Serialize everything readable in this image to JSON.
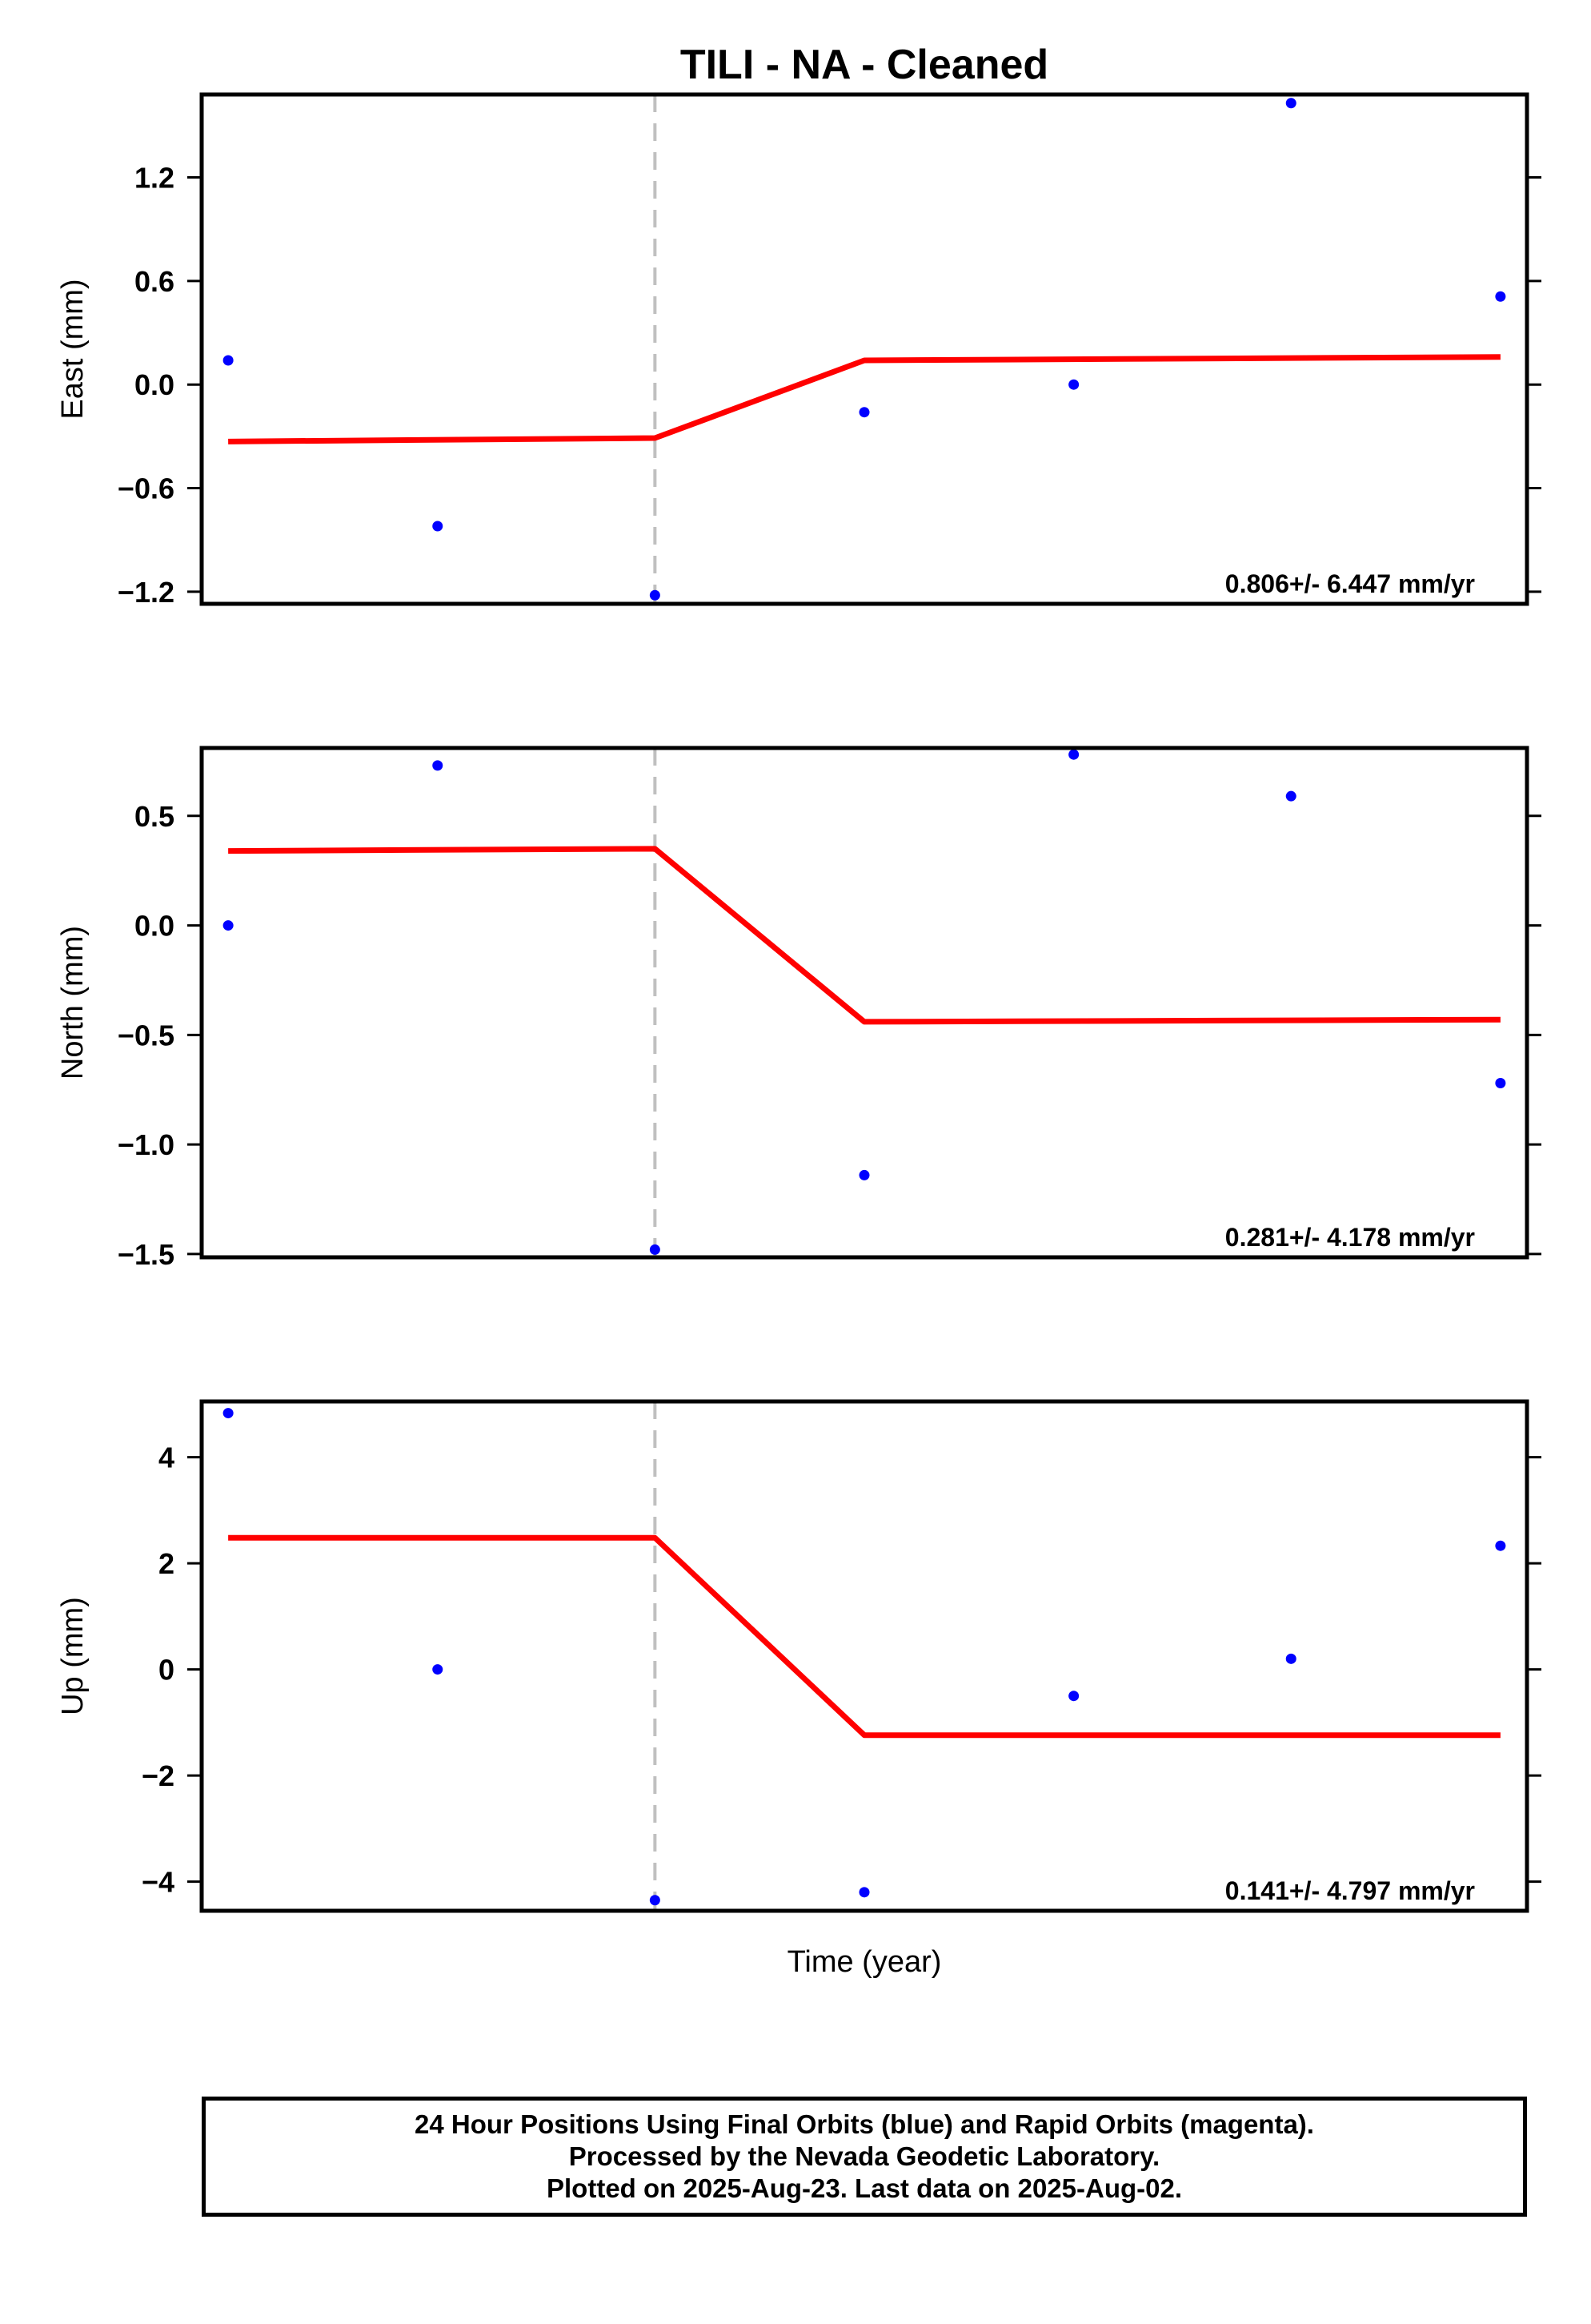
{
  "title": "TILI  - NA - Cleaned",
  "xlabel": "Time (year)",
  "colors": {
    "final_orbits": "#0000ff",
    "model": "#ff0000",
    "epoch_line": "#c0c0c0",
    "frame": "#000000"
  },
  "footer": {
    "line1": "24 Hour Positions Using Final Orbits (blue) and Rapid Orbits (magenta).",
    "line2": "Processed by the Nevada Geodetic Laboratory.",
    "line3": "Plotted on 2025-Aug-23. Last data on 2025-Aug-02."
  },
  "chart_data": [
    {
      "type": "scatter",
      "panel": "east",
      "ylabel": "East (mm)",
      "rate_label": "0.806+/- 6.447 mm/yr",
      "ylim": [
        -1.27,
        1.68
      ],
      "yticks": [
        1.2,
        0.6,
        0.0,
        -0.6,
        -1.2
      ],
      "ytick_labels": [
        "1.2",
        "0.6",
        "0.0",
        "−0.6",
        "−1.2"
      ],
      "xlim": [
        0,
        1
      ],
      "x_epoch": 0.342,
      "points": {
        "x": [
          0.02,
          0.178,
          0.342,
          0.5,
          0.658,
          0.822,
          0.98
        ],
        "y": [
          0.14,
          -0.82,
          -1.22,
          -0.16,
          0.0,
          1.63,
          0.51
        ]
      },
      "model": {
        "x": [
          0.02,
          0.342,
          0.5,
          0.98
        ],
        "y": [
          -0.33,
          -0.31,
          0.14,
          0.16
        ]
      }
    },
    {
      "type": "scatter",
      "panel": "north",
      "ylabel": "North (mm)",
      "rate_label": "0.281+/- 4.178 mm/yr",
      "ylim": [
        -1.515,
        0.81
      ],
      "yticks": [
        0.5,
        0.0,
        -0.5,
        -1.0,
        -1.5
      ],
      "ytick_labels": [
        "0.5",
        "0.0",
        "−0.5",
        "−1.0",
        "−1.5"
      ],
      "xlim": [
        0,
        1
      ],
      "x_epoch": 0.342,
      "points": {
        "x": [
          0.02,
          0.178,
          0.342,
          0.5,
          0.658,
          0.822,
          0.98
        ],
        "y": [
          0.0,
          0.73,
          -1.48,
          -1.14,
          0.78,
          0.59,
          -0.72
        ]
      },
      "model": {
        "x": [
          0.02,
          0.342,
          0.5,
          0.98
        ],
        "y": [
          0.34,
          0.35,
          -0.44,
          -0.43
        ]
      }
    },
    {
      "type": "scatter",
      "panel": "up",
      "ylabel": "Up (mm)",
      "rate_label": "0.141+/- 4.797 mm/yr",
      "ylim": [
        -4.55,
        5.05
      ],
      "yticks": [
        4,
        2,
        0,
        -2,
        -4
      ],
      "ytick_labels": [
        "4",
        "2",
        "0",
        "−2",
        "−4"
      ],
      "xlim": [
        0,
        1
      ],
      "x_epoch": 0.342,
      "points": {
        "x": [
          0.02,
          0.178,
          0.342,
          0.5,
          0.658,
          0.822,
          0.98
        ],
        "y": [
          4.83,
          0.0,
          -4.35,
          -4.2,
          -0.5,
          0.2,
          2.33
        ]
      },
      "model": {
        "x": [
          0.02,
          0.342,
          0.5,
          0.98
        ],
        "y": [
          2.48,
          2.48,
          -1.24,
          -1.24
        ]
      }
    }
  ]
}
